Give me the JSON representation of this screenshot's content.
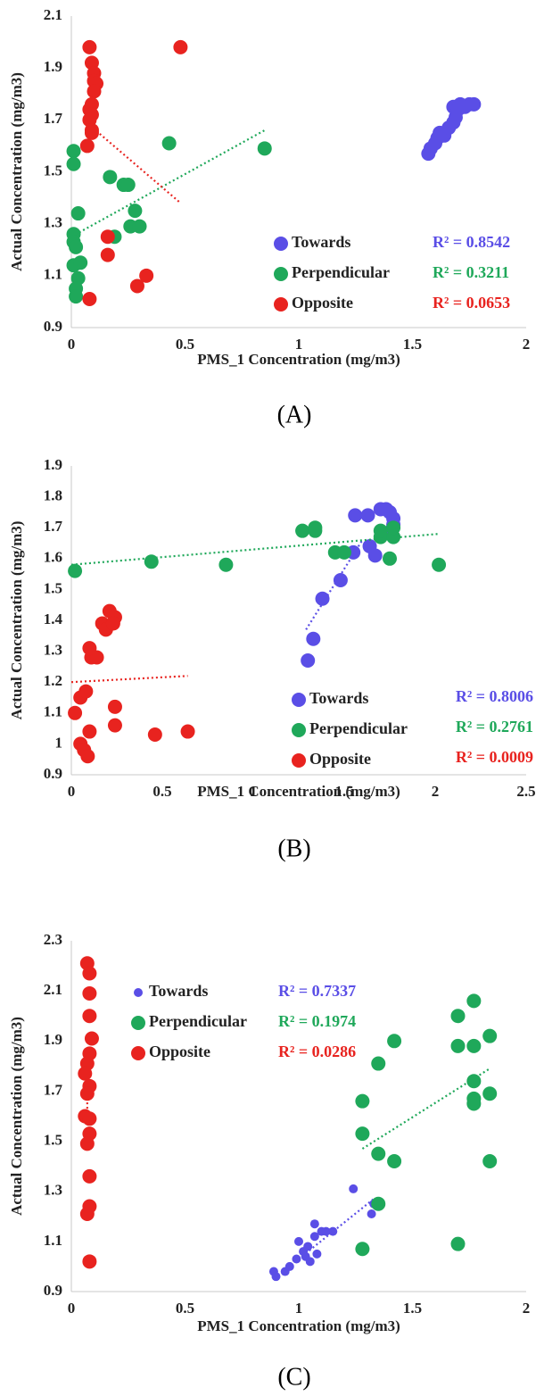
{
  "chart_data": [
    {
      "type": "scatter",
      "panel_label": "(A)",
      "x_label": "PMS_1 Concentration (mg/m3)",
      "y_label": "Actual Concentration (mg/m3)",
      "xlim": [
        0,
        2
      ],
      "ylim": [
        0.9,
        2.1
      ],
      "xticks": [
        0,
        0.5,
        1,
        1.5,
        2
      ],
      "yticks": [
        0.9,
        1.1,
        1.3,
        1.5,
        1.7,
        1.9,
        2.1
      ],
      "series": [
        {
          "name": "Towards",
          "color": "#5a4ee6",
          "r2_label": "R² = 0.8542",
          "x": [
            1.57,
            1.58,
            1.6,
            1.61,
            1.62,
            1.64,
            1.66,
            1.68,
            1.69,
            1.68,
            1.7,
            1.71,
            1.73,
            1.75,
            1.77
          ],
          "values": [
            1.57,
            1.59,
            1.61,
            1.63,
            1.65,
            1.64,
            1.67,
            1.69,
            1.71,
            1.75,
            1.74,
            1.76,
            1.75,
            1.76,
            1.76
          ]
        },
        {
          "name": "Perpendicular",
          "color": "#1fa85a",
          "r2_label": "R² = 0.3211",
          "x": [
            0.01,
            0.01,
            0.03,
            0.01,
            0.01,
            0.02,
            0.01,
            0.04,
            0.03,
            0.02,
            0.02,
            0.17,
            0.23,
            0.25,
            0.28,
            0.26,
            0.3,
            0.19,
            0.43,
            0.85
          ],
          "values": [
            1.58,
            1.53,
            1.34,
            1.26,
            1.23,
            1.21,
            1.14,
            1.15,
            1.09,
            1.05,
            1.02,
            1.48,
            1.45,
            1.45,
            1.35,
            1.29,
            1.29,
            1.25,
            1.61,
            1.59
          ],
          "trendline": {
            "x": [
              0,
              0.85
            ],
            "y": [
              1.25,
              1.66
            ]
          }
        },
        {
          "name": "Opposite",
          "color": "#e8231f",
          "r2_label": "R² = 0.0653",
          "x": [
            0.08,
            0.09,
            0.1,
            0.1,
            0.11,
            0.1,
            0.09,
            0.08,
            0.09,
            0.08,
            0.09,
            0.09,
            0.07,
            0.48,
            0.16,
            0.16,
            0.33,
            0.29,
            0.08
          ],
          "values": [
            1.98,
            1.92,
            1.88,
            1.85,
            1.84,
            1.81,
            1.76,
            1.74,
            1.72,
            1.7,
            1.66,
            1.65,
            1.6,
            1.98,
            1.25,
            1.18,
            1.1,
            1.06,
            1.01
          ],
          "trendline": {
            "x": [
              0.08,
              0.48
            ],
            "y": [
              1.68,
              1.38
            ]
          }
        }
      ]
    },
    {
      "type": "scatter",
      "panel_label": "(B)",
      "x_label": "PMS_1 Concentration (mg/m3)",
      "y_label": "Actual Concentration (mg/m3)",
      "xlim": [
        0,
        2.5
      ],
      "ylim": [
        0.9,
        1.9
      ],
      "xticks": [
        0,
        0.5,
        1,
        1.5,
        2,
        2.5
      ],
      "yticks": [
        0.9,
        1,
        1.1,
        1.2,
        1.3,
        1.4,
        1.5,
        1.6,
        1.7,
        1.8,
        1.9
      ],
      "series": [
        {
          "name": "Towards",
          "color": "#5a4ee6",
          "r2_label": "R² = 0.8006",
          "x": [
            1.3,
            1.33,
            1.38,
            1.48,
            1.55,
            1.56,
            1.63,
            1.64,
            1.67,
            1.7,
            1.73,
            1.75,
            1.77,
            1.77,
            1.76
          ],
          "values": [
            1.27,
            1.34,
            1.47,
            1.53,
            1.62,
            1.74,
            1.74,
            1.64,
            1.61,
            1.76,
            1.76,
            1.75,
            1.73,
            1.71,
            1.69
          ],
          "trendline": {
            "x": [
              1.29,
              1.6
            ],
            "y": [
              1.37,
              1.66
            ]
          }
        },
        {
          "name": "Perpendicular",
          "color": "#1fa85a",
          "r2_label": "R² = 0.2761",
          "x": [
            0.02,
            0.44,
            0.85,
            1.27,
            1.34,
            1.34,
            1.45,
            1.5,
            1.7,
            1.7,
            1.75,
            1.77,
            1.77,
            2.02
          ],
          "values": [
            1.56,
            1.59,
            1.58,
            1.69,
            1.69,
            1.7,
            1.62,
            1.62,
            1.67,
            1.69,
            1.6,
            1.67,
            1.7,
            1.58
          ],
          "trendline": {
            "x": [
              0,
              2.02
            ],
            "y": [
              1.58,
              1.68
            ]
          }
        },
        {
          "name": "Opposite",
          "color": "#e8231f",
          "r2_label": "R² = 0.0009",
          "x": [
            0.17,
            0.19,
            0.21,
            0.24,
            0.23,
            0.11,
            0.14,
            0.1,
            0.02,
            0.05,
            0.08,
            0.1,
            0.24,
            0.24,
            0.05,
            0.07,
            0.09,
            0.46,
            0.64
          ],
          "values": [
            1.39,
            1.37,
            1.43,
            1.41,
            1.39,
            1.28,
            1.28,
            1.31,
            1.1,
            1.15,
            1.17,
            1.04,
            1.12,
            1.06,
            1.0,
            0.98,
            0.96,
            1.03,
            1.04
          ],
          "trendline": {
            "x": [
              0,
              0.64
            ],
            "y": [
              1.2,
              1.22
            ]
          }
        }
      ]
    },
    {
      "type": "scatter",
      "panel_label": "(C)",
      "x_label": "PMS_1 Concentration (mg/m3)",
      "y_label": "Actual Concentration (mg/m3)",
      "xlim": [
        0,
        2
      ],
      "ylim": [
        0.9,
        2.3
      ],
      "xticks": [
        0,
        0.5,
        1,
        1.5,
        2
      ],
      "yticks": [
        0.9,
        1.1,
        1.3,
        1.5,
        1.7,
        1.9,
        2.1,
        2.3
      ],
      "series": [
        {
          "name": "Towards",
          "color": "#5a4ee6",
          "r2_label": "R² = 0.7337",
          "x": [
            0.89,
            0.9,
            0.94,
            0.96,
            0.99,
            1.0,
            1.02,
            1.03,
            1.04,
            1.05,
            1.07,
            1.07,
            1.08,
            1.1,
            1.12,
            1.15,
            1.24,
            1.32,
            1.33
          ],
          "values": [
            0.98,
            0.96,
            0.98,
            1.0,
            1.03,
            1.1,
            1.06,
            1.04,
            1.08,
            1.02,
            1.12,
            1.17,
            1.05,
            1.14,
            1.14,
            1.14,
            1.31,
            1.21,
            1.25
          ],
          "trendline": {
            "x": [
              1.0,
              1.33
            ],
            "y": [
              1.03,
              1.27
            ]
          }
        },
        {
          "name": "Perpendicular",
          "color": "#1fa85a",
          "r2_label": "R² = 0.1974",
          "x": [
            1.28,
            1.28,
            1.28,
            1.35,
            1.35,
            1.35,
            1.42,
            1.42,
            1.7,
            1.7,
            1.7,
            1.77,
            1.77,
            1.77,
            1.77,
            1.77,
            1.84,
            1.84,
            1.84
          ],
          "values": [
            1.66,
            1.53,
            1.07,
            1.81,
            1.45,
            1.25,
            1.9,
            1.42,
            2.0,
            1.88,
            1.09,
            2.06,
            1.88,
            1.74,
            1.67,
            1.65,
            1.92,
            1.69,
            1.42
          ],
          "trendline": {
            "x": [
              1.28,
              1.84
            ],
            "y": [
              1.47,
              1.79
            ]
          }
        },
        {
          "name": "Opposite",
          "color": "#e8231f",
          "r2_label": "R² = 0.0286",
          "x": [
            0.07,
            0.08,
            0.08,
            0.08,
            0.09,
            0.08,
            0.07,
            0.06,
            0.08,
            0.07,
            0.06,
            0.08,
            0.08,
            0.07,
            0.08,
            0.08,
            0.07,
            0.08
          ],
          "values": [
            2.21,
            2.17,
            2.09,
            2.0,
            1.91,
            1.85,
            1.81,
            1.77,
            1.72,
            1.69,
            1.6,
            1.59,
            1.53,
            1.49,
            1.36,
            1.24,
            1.21,
            1.02
          ],
          "trendline": {
            "x": [
              0.07,
              0.07
            ],
            "y": [
              1.63,
              1.67
            ]
          }
        }
      ]
    }
  ]
}
